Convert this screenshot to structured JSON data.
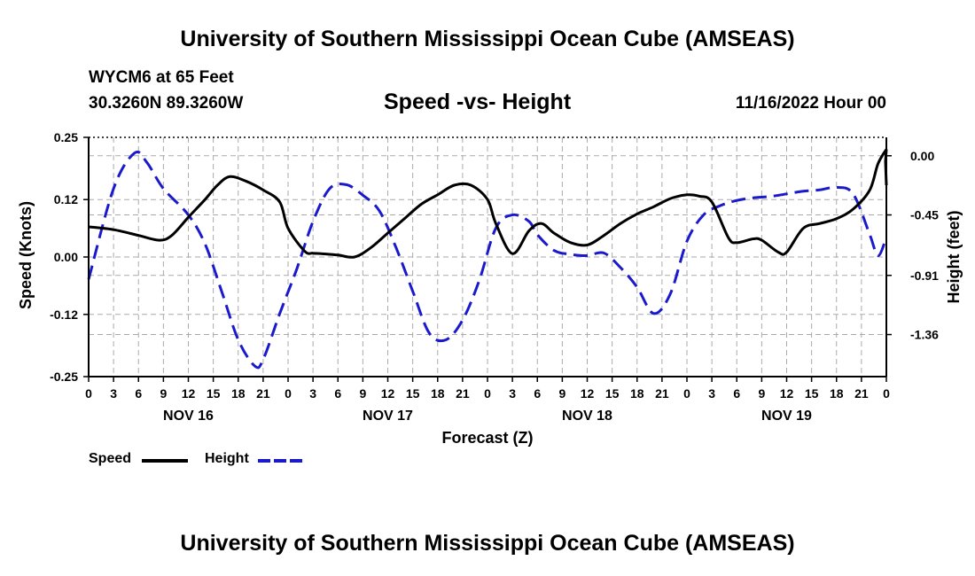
{
  "header": {
    "main_title": "University of Southern Mississippi Ocean Cube (AMSEAS)",
    "station": "WYCM6 at 65 Feet",
    "coords": "30.3260N  89.3260W",
    "chart_title": "Speed -vs- Height",
    "datetime": "11/16/2022 Hour 00",
    "footer_title": "University of Southern Mississippi Ocean Cube (AMSEAS)"
  },
  "legend": {
    "speed": "Speed",
    "height": "Height"
  },
  "colors": {
    "speed": "#000000",
    "height": "#1a1acc",
    "grid": "#aaaaaa"
  },
  "chart_data": {
    "type": "line",
    "title": "Speed -vs- Height",
    "xlabel": "Forecast (Z)",
    "ylabel": "Speed (Knots)",
    "y2label": "Height (feet)",
    "xlim": [
      0,
      96
    ],
    "ylim": [
      -0.25,
      0.25
    ],
    "y2lim": [
      -1.68,
      0.14
    ],
    "x_ticks": [
      0,
      3,
      6,
      9,
      12,
      15,
      18,
      21,
      24,
      27,
      30,
      33,
      36,
      39,
      42,
      45,
      48,
      51,
      54,
      57,
      60,
      63,
      66,
      69,
      72,
      75,
      78,
      81,
      84,
      87,
      90,
      93,
      96
    ],
    "x_tick_labels": [
      "0",
      "3",
      "6",
      "9",
      "12",
      "15",
      "18",
      "21",
      "0",
      "3",
      "6",
      "9",
      "12",
      "15",
      "18",
      "21",
      "0",
      "3",
      "6",
      "9",
      "12",
      "15",
      "18",
      "21",
      "0",
      "3",
      "6",
      "9",
      "12",
      "15",
      "18",
      "21",
      "0"
    ],
    "day_labels": [
      {
        "label": "NOV 16",
        "x": 12
      },
      {
        "label": "NOV 17",
        "x": 36
      },
      {
        "label": "NOV 18",
        "x": 60
      },
      {
        "label": "NOV 19",
        "x": 84
      }
    ],
    "y_ticks": [
      0.25,
      0.12,
      0.0,
      -0.12,
      -0.25
    ],
    "y_tick_labels": [
      "0.25",
      "0.12",
      "0.00",
      "-0.12",
      "-0.25"
    ],
    "y2_ticks": [
      0.0,
      -0.45,
      -0.91,
      -1.36
    ],
    "y2_tick_labels": [
      "0.00",
      "-0.45",
      "-0.91",
      "-1.36"
    ],
    "grid": true,
    "series": [
      {
        "name": "Speed",
        "axis": "left",
        "style": "solid",
        "x": [
          0,
          3,
          6,
          8.5,
          10,
          12,
          14,
          15.5,
          17,
          19,
          21,
          23,
          24,
          26,
          27,
          28,
          30,
          32,
          34,
          36,
          38,
          40,
          42,
          44,
          46,
          48,
          49,
          51,
          53,
          54.5,
          56,
          58,
          60,
          62,
          64,
          66,
          68,
          70,
          72,
          73.5,
          75,
          77,
          78,
          80,
          81,
          83,
          84,
          86,
          88,
          90,
          92,
          94,
          95,
          96
        ],
        "values": [
          0.063,
          0.057,
          0.045,
          0.035,
          0.045,
          0.083,
          0.12,
          0.15,
          0.168,
          0.158,
          0.14,
          0.115,
          0.06,
          0.012,
          0.008,
          0.007,
          0.004,
          0.0,
          0.02,
          0.05,
          0.08,
          0.11,
          0.13,
          0.15,
          0.15,
          0.12,
          0.07,
          0.007,
          0.055,
          0.07,
          0.05,
          0.03,
          0.025,
          0.045,
          0.07,
          0.09,
          0.105,
          0.122,
          0.13,
          0.127,
          0.115,
          0.04,
          0.03,
          0.038,
          0.035,
          0.01,
          0.01,
          0.06,
          0.07,
          0.08,
          0.1,
          0.14,
          0.195,
          0.225
        ],
        "values_right_edge": [
          0.2,
          0.15
        ]
      },
      {
        "name": "Height",
        "axis": "right",
        "style": "dashed",
        "x": [
          0,
          3,
          5.5,
          7,
          9,
          12,
          14,
          16,
          18,
          20,
          21,
          23,
          25,
          27,
          29,
          31,
          33,
          35,
          37,
          39,
          41,
          43,
          45,
          47,
          49,
          51,
          53,
          54,
          56,
          58,
          60,
          62,
          64,
          66,
          68,
          70,
          72,
          74,
          76,
          78,
          80,
          82,
          84,
          86,
          88,
          90,
          92,
          94,
          95,
          96
        ],
        "values": [
          -0.94,
          -0.25,
          0.02,
          -0.05,
          -0.25,
          -0.45,
          -0.67,
          -1.03,
          -1.4,
          -1.6,
          -1.55,
          -1.2,
          -0.87,
          -0.5,
          -0.25,
          -0.22,
          -0.3,
          -0.42,
          -0.7,
          -1.03,
          -1.35,
          -1.4,
          -1.25,
          -0.95,
          -0.55,
          -0.45,
          -0.5,
          -0.6,
          -0.72,
          -0.75,
          -0.76,
          -0.74,
          -0.85,
          -1.0,
          -1.2,
          -1.05,
          -0.65,
          -0.45,
          -0.38,
          -0.34,
          -0.32,
          -0.31,
          -0.29,
          -0.27,
          -0.26,
          -0.24,
          -0.29,
          -0.6,
          -0.76,
          -0.62
        ]
      }
    ]
  }
}
